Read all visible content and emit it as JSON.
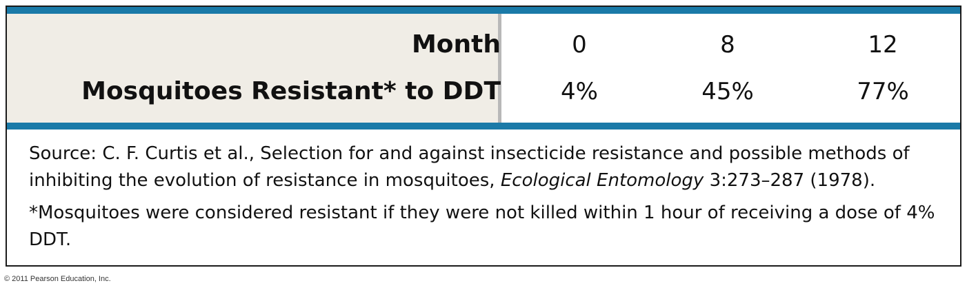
{
  "chart_data": {
    "type": "table",
    "row_headers": [
      "Month",
      "Mosquitoes Resistant* to DDT"
    ],
    "columns": [
      "0",
      "8",
      "12"
    ],
    "rows": [
      [
        "0",
        "8",
        "12"
      ],
      [
        "4%",
        "45%",
        "77%"
      ]
    ],
    "values": {
      "month": [
        0,
        8,
        12
      ],
      "percent_resistant": [
        4,
        45,
        77
      ]
    }
  },
  "colors": {
    "accent_bar": "#1a7aa8",
    "label_panel": "#f0ede6",
    "divider": "#b8b8b8"
  },
  "notes": {
    "source_prefix": "Source: C. F. Curtis et al., Selection for and against insecticide resistance and possible methods of inhibiting the evolution of resistance in mosquitoes, ",
    "source_journal": "Ecological Entomology",
    "source_suffix": " 3:273–287 (1978).",
    "footnote": "*Mosquitoes were considered resistant if they were not killed within 1 hour of receiving a dose of 4% DDT."
  },
  "copyright": "© 2011 Pearson Education, Inc."
}
